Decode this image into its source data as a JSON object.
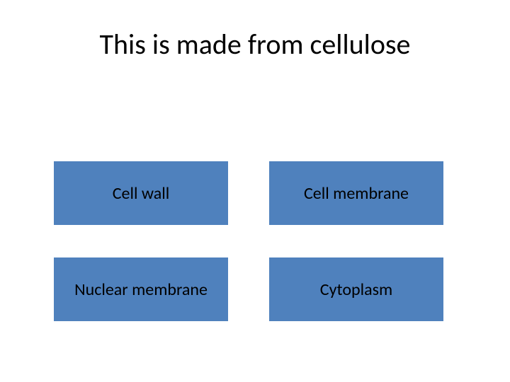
{
  "title": "This is made from cellulose",
  "options": [
    "Cell wall",
    "Cell membrane",
    "Nuclear membrane",
    "Cytoplasm"
  ],
  "colors": {
    "background": "#ffffff",
    "button_fill": "#4f81bd",
    "text": "#000000"
  },
  "layout": {
    "title_fontsize": 40,
    "option_fontsize": 24,
    "grid_cols": 2,
    "grid_rows": 2
  }
}
